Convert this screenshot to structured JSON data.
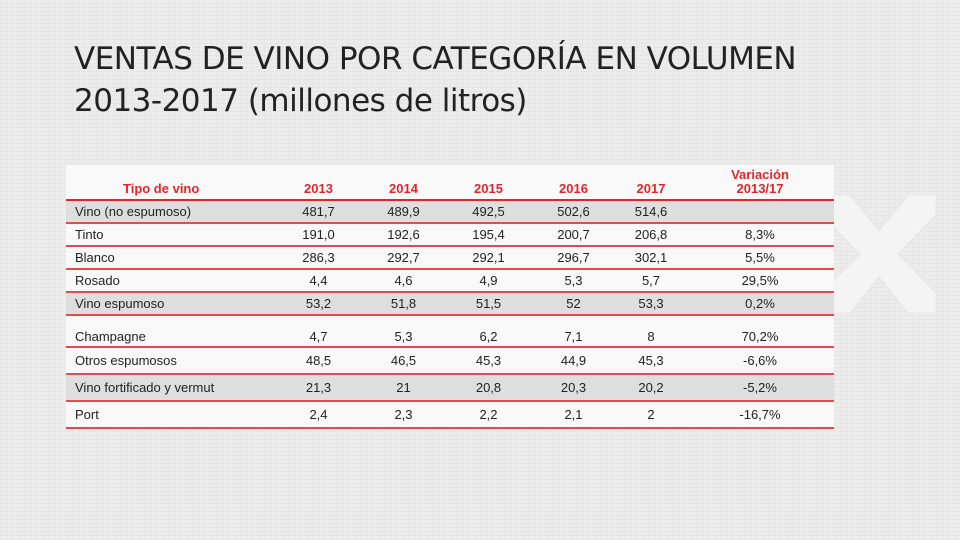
{
  "title": {
    "line1": "VENTAS DE VINO POR CATEGORÍA EN VOLUMEN",
    "line2": "2013-2017 (millones de litros)"
  },
  "table": {
    "headers": [
      "Tipo de vino",
      "2013",
      "2014",
      "2015",
      "2016",
      "2017",
      "Variación",
      "2013/17"
    ],
    "rows": [
      {
        "label": "Vino (no espumoso)",
        "values": [
          "481,7",
          "489,9",
          "492,5",
          "502,6",
          "514,6"
        ],
        "variation": ""
      },
      {
        "label": "Tinto",
        "values": [
          "191,0",
          "192,6",
          "195,4",
          "200,7",
          "206,8"
        ],
        "variation": "8,3%"
      },
      {
        "label": "Blanco",
        "values": [
          "286,3",
          "292,7",
          "292,1",
          "296,7",
          "302,1"
        ],
        "variation": "5,5%"
      },
      {
        "label": "Rosado",
        "values": [
          "4,4",
          "4,6",
          "4,9",
          "5,3",
          "5,7"
        ],
        "variation": "29,5%"
      },
      {
        "label": "Vino espumoso",
        "values": [
          "53,2",
          "51,8",
          "51,5",
          "52",
          "53,3"
        ],
        "variation": "0,2%"
      },
      {
        "label": "Champagne",
        "values": [
          "4,7",
          "5,3",
          "6,2",
          "7,1",
          "8"
        ],
        "variation": "70,2%"
      },
      {
        "label": "Otros espumosos",
        "values": [
          "48,5",
          "46,5",
          "45,3",
          "44,9",
          "45,3"
        ],
        "variation": "-6,6%"
      },
      {
        "label": "Vino fortificado y vermut",
        "values": [
          "21,3",
          "21",
          "20,8",
          "20,3",
          "20,2"
        ],
        "variation": "-5,2%"
      },
      {
        "label": "Port",
        "values": [
          "2,4",
          "2,3",
          "2,2",
          "2,1",
          "2"
        ],
        "variation": "-16,7%"
      }
    ]
  },
  "colors": {
    "accent": "#e0262b",
    "shade": "#dedede",
    "text": "#222222"
  }
}
